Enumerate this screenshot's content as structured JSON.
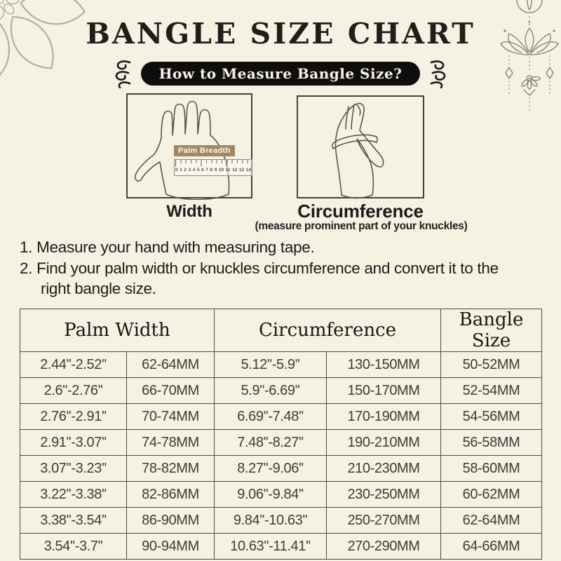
{
  "title": "BANGLE SIZE CHART",
  "banner": {
    "label": "How to Measure Bangle Size?"
  },
  "figures": {
    "width": {
      "caption": "Width",
      "ruler_label": "Palm Breadth",
      "ruler_numbers": [
        "0",
        "1",
        "2",
        "3",
        "4",
        "5",
        "6",
        "7",
        "8",
        "9",
        "10",
        "11",
        "12",
        "13",
        "14"
      ]
    },
    "circumference": {
      "caption": "Circumference",
      "note": "(measure prominent part of your knuckles)"
    }
  },
  "instructions": [
    {
      "num": "1.",
      "text": "Measure your hand with measuring tape."
    },
    {
      "num": "2.",
      "text": "Find your palm width or knuckles circumference and convert it to the right bangle size."
    }
  ],
  "table": {
    "headers": [
      "Palm Width",
      "Circumference",
      "Bangle Size"
    ],
    "rows": [
      [
        "2.44''-2.52''",
        "62-64MM",
        "5.12''-5.9''",
        "130-150MM",
        "50-52MM"
      ],
      [
        "2.6''-2.76''",
        "66-70MM",
        "5.9''-6.69''",
        "150-170MM",
        "52-54MM"
      ],
      [
        "2.76''-2.91''",
        "70-74MM",
        "6.69''-7.48''",
        "170-190MM",
        "54-56MM"
      ],
      [
        "2.91''-3.07''",
        "74-78MM",
        "7.48''-8.27''",
        "190-210MM",
        "56-58MM"
      ],
      [
        "3.07''-3.23''",
        "78-82MM",
        "8.27''-9.06''",
        "210-230MM",
        "58-60MM"
      ],
      [
        "3.22''-3.38''",
        "82-86MM",
        "9.06''-9.84''",
        "230-250MM",
        "60-62MM"
      ],
      [
        "3.38''-3.54''",
        "86-90MM",
        "9.84''-10.63''",
        "250-270MM",
        "62-64MM"
      ],
      [
        "3.54''-3.7''",
        "90-94MM",
        "10.63''-11.41''",
        "270-290MM",
        "64-66MM"
      ]
    ]
  },
  "colors": {
    "background": "#f5f1e3",
    "ink": "#201e1b",
    "banner_bg": "#0f0e0c",
    "banner_text": "#f6f2e6",
    "table_border": "#4d4a44",
    "table_text": "#3e3c38",
    "line_art": "#5a564e",
    "corner_decor": "#b2aea4",
    "ornament": "#8b8478",
    "ruler_label_bg": "#a18862"
  }
}
